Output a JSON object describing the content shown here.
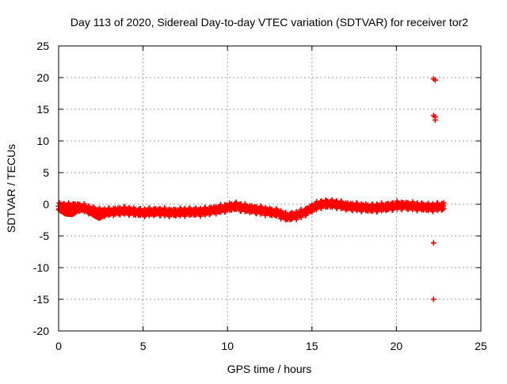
{
  "chart_data": {
    "type": "scatter",
    "title": "Day 113 of 2020, Sidereal Day-to-day VTEC variation (SDTVAR) for receiver tor2",
    "xlabel": "GPS time / hours",
    "ylabel": "SDTVAR / TECUs",
    "xlim": [
      0,
      25
    ],
    "ylim": [
      -20,
      25
    ],
    "xticks": [
      0,
      5,
      10,
      15,
      20,
      25
    ],
    "yticks": [
      -20,
      -15,
      -10,
      -5,
      0,
      5,
      10,
      15,
      20,
      25
    ],
    "grid": true,
    "marker": "+",
    "series_color": "#ff0000",
    "trend": {
      "name": "main band (center line)",
      "x": [
        0.0,
        0.5,
        1.0,
        1.5,
        2.0,
        2.5,
        3.0,
        3.5,
        4.0,
        4.5,
        5.0,
        5.5,
        6.0,
        6.5,
        7.0,
        7.5,
        8.0,
        8.5,
        9.0,
        9.5,
        10.0,
        10.5,
        11.0,
        11.5,
        12.0,
        12.5,
        13.0,
        13.5,
        14.0,
        14.5,
        15.0,
        15.5,
        16.0,
        16.5,
        17.0,
        17.5,
        18.0,
        18.5,
        19.0,
        19.5,
        20.0,
        20.5,
        21.0,
        21.5,
        22.0,
        22.5,
        22.8
      ],
      "y": [
        -0.3,
        -0.5,
        -0.4,
        -0.6,
        -1.0,
        -1.3,
        -1.2,
        -1.1,
        -1.0,
        -1.2,
        -1.3,
        -1.2,
        -1.2,
        -1.3,
        -1.3,
        -1.2,
        -1.2,
        -1.2,
        -1.0,
        -0.8,
        -0.5,
        -0.3,
        -0.6,
        -0.8,
        -1.0,
        -1.2,
        -1.4,
        -2.0,
        -1.8,
        -1.4,
        -0.6,
        0.0,
        0.1,
        0.0,
        -0.3,
        -0.4,
        -0.5,
        -0.6,
        -0.5,
        -0.4,
        -0.2,
        -0.2,
        -0.3,
        -0.4,
        -0.5,
        -0.4,
        -0.3
      ],
      "band_half_width": 0.7
    },
    "secondary_arc": {
      "name": "lower arc near start",
      "x": [
        0.0,
        0.4,
        0.8,
        1.2,
        1.6,
        2.0,
        2.4,
        2.8,
        3.2
      ],
      "y": [
        -0.8,
        -1.5,
        -1.6,
        -0.9,
        -0.8,
        -1.6,
        -2.2,
        -1.6,
        -1.1
      ]
    },
    "outliers": [
      {
        "x": 22.2,
        "y": 19.8
      },
      {
        "x": 22.3,
        "y": 19.6
      },
      {
        "x": 22.2,
        "y": 14.0
      },
      {
        "x": 22.3,
        "y": 13.8
      },
      {
        "x": 22.3,
        "y": 13.3
      },
      {
        "x": 22.2,
        "y": -6.1
      },
      {
        "x": 22.2,
        "y": -15.0
      }
    ]
  }
}
